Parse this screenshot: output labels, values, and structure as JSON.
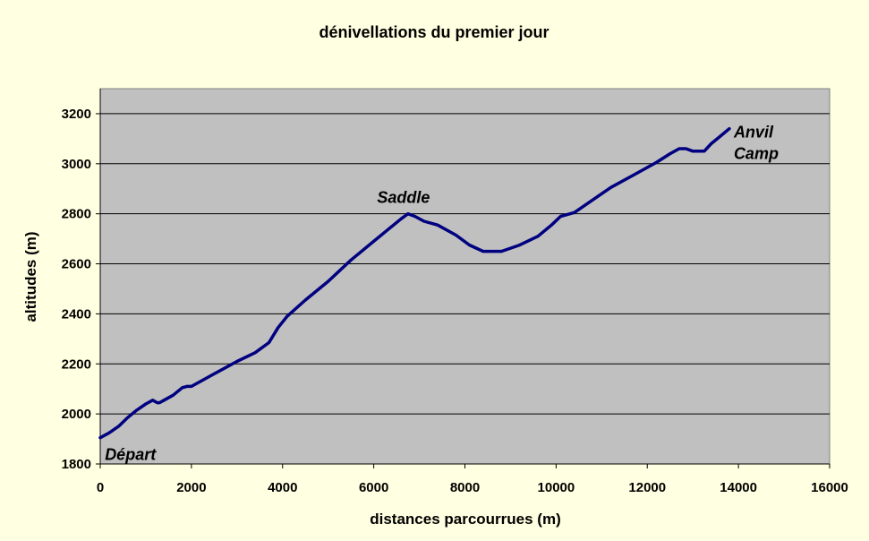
{
  "chart_data": {
    "type": "line",
    "title": "dénivellations du premier jour",
    "xlabel": "distances parcourrues (m)",
    "ylabel": "altitudes (m)",
    "xlim": [
      0,
      16000
    ],
    "ylim": [
      1800,
      3300
    ],
    "xticks": [
      0,
      2000,
      4000,
      6000,
      8000,
      10000,
      12000,
      14000,
      16000
    ],
    "yticks": [
      1800,
      2000,
      2200,
      2400,
      2600,
      2800,
      3000,
      3200
    ],
    "grid": "horizontal",
    "series_color": "#000080",
    "plot_background": "#c0c0c0",
    "series": [
      {
        "x": [
          0,
          200,
          400,
          600,
          800,
          1000,
          1150,
          1250,
          1300,
          1400,
          1600,
          1800,
          1900,
          2000,
          2500,
          3000,
          3400,
          3700,
          3900,
          4100,
          4500,
          5000,
          5500,
          6000,
          6300,
          6600,
          6750,
          6900,
          7100,
          7400,
          7800,
          8100,
          8400,
          8800,
          9200,
          9600,
          9900,
          10100,
          10400,
          10800,
          11200,
          11700,
          12200,
          12500,
          12700,
          12850,
          13000,
          13250,
          13400,
          13600,
          13800
        ],
        "y": [
          1905,
          1925,
          1950,
          1985,
          2015,
          2040,
          2055,
          2045,
          2045,
          2055,
          2075,
          2105,
          2110,
          2110,
          2160,
          2210,
          2245,
          2285,
          2345,
          2390,
          2455,
          2530,
          2615,
          2690,
          2735,
          2780,
          2800,
          2790,
          2770,
          2755,
          2715,
          2675,
          2650,
          2650,
          2675,
          2710,
          2755,
          2790,
          2805,
          2855,
          2905,
          2955,
          3005,
          3040,
          3060,
          3060,
          3050,
          3050,
          3080,
          3110,
          3140
        ]
      }
    ],
    "annotations": [
      {
        "text": "Départ",
        "x": 200,
        "y": 1905
      },
      {
        "text": "Saddle",
        "x": 6750,
        "y": 2800
      },
      {
        "text": "Anvil",
        "x": 13800,
        "y": 3140
      },
      {
        "text": "Camp",
        "x": 13800,
        "y": 3140
      }
    ]
  }
}
